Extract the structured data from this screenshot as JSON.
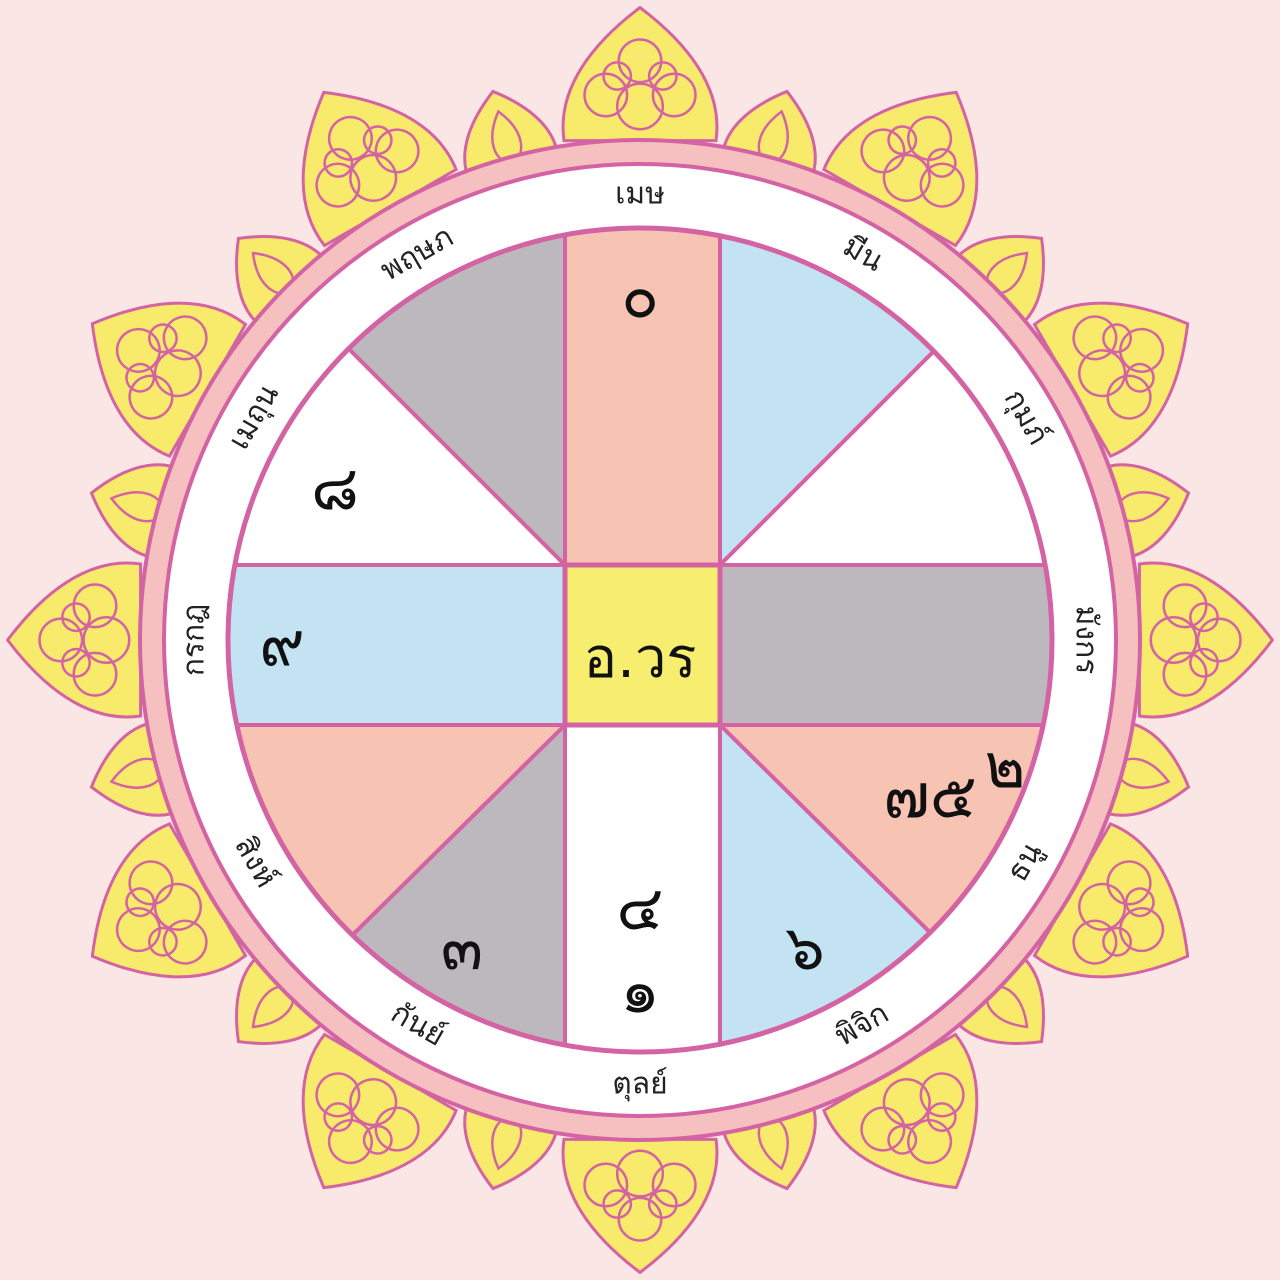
{
  "colors": {
    "background": "#fbe6e6",
    "line": "#d463a3",
    "ring": "#ffffff",
    "outer_band": "#f6c0c0",
    "ornament": "#f8ea6a",
    "salmon": "#f7c4b4",
    "blue": "#c3e3f3",
    "grey": "#bdb8bd",
    "white": "#ffffff",
    "center": "#f7ee70"
  },
  "center_label": "อ.วร",
  "signs": [
    "เมษ",
    "มีน",
    "กุมภ์",
    "มังกร",
    "ธนู",
    "พิจิก",
    "ตุลย์",
    "กันย์",
    "สิงห์",
    "กรกฎ",
    "เมถุน",
    "พฤษภ"
  ],
  "houses": [
    {
      "sign": "เมษ",
      "color": "salmon",
      "numbers": "๐"
    },
    {
      "sign": "มีน",
      "color": "blue",
      "numbers": ""
    },
    {
      "sign": "กุมภ์",
      "color": "white",
      "numbers": ""
    },
    {
      "sign": "มังกร",
      "color": "grey",
      "numbers": ""
    },
    {
      "sign": "ธนู",
      "color": "salmon",
      "numbers": "๗๕",
      "superscript": "๒"
    },
    {
      "sign": "พิจิก",
      "color": "blue",
      "numbers": "๖"
    },
    {
      "sign": "ตุลย์",
      "color": "white",
      "numbers": "๔",
      "numbers2": "๑"
    },
    {
      "sign": "กันย์",
      "color": "grey",
      "numbers": "๓"
    },
    {
      "sign": "สิงห์",
      "color": "salmon",
      "numbers": ""
    },
    {
      "sign": "กรกฎ",
      "color": "blue",
      "numbers": "๙"
    },
    {
      "sign": "เมถุน",
      "color": "white",
      "numbers": "๘"
    },
    {
      "sign": "พฤษภ",
      "color": "grey",
      "numbers": ""
    }
  ]
}
